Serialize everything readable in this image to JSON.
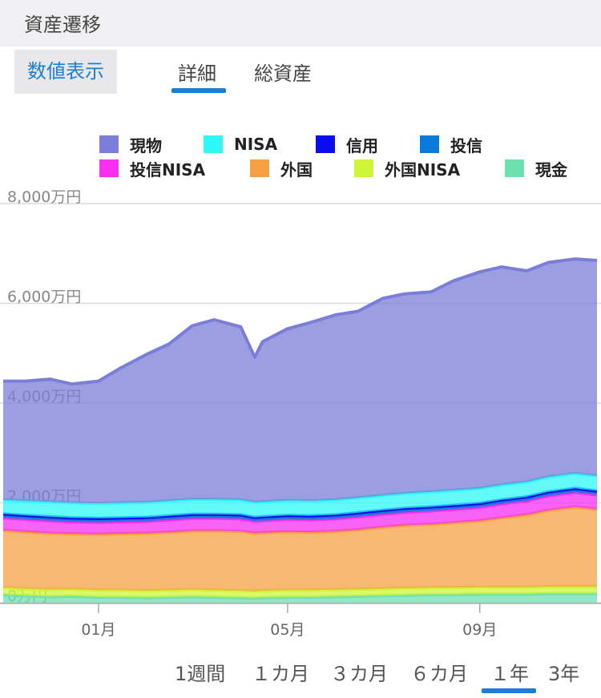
{
  "header": {
    "title": "資産遷移"
  },
  "tabs": {
    "value_toggle": "数値表示",
    "detail": "詳細",
    "total": "総資産",
    "active": "detail"
  },
  "range_buttons": [
    "1週間",
    "１カ月",
    "３カ月",
    "６カ月",
    "１年",
    "3年"
  ],
  "range_active": "１年",
  "colors": {
    "accent": "#1a7fd4",
    "genbutsu": "#7b7ed8",
    "nisa": "#2ef7f7",
    "shinyo": "#0b0bf0",
    "toshin": "#0a7bd8",
    "toshin_nisa": "#f62ff2",
    "gaikoku": "#f5a042",
    "gaikoku_nisa": "#cff53a",
    "genkin": "#6ee0b0"
  },
  "chart_data": {
    "type": "area",
    "stacked": true,
    "title": "",
    "xlabel": "",
    "ylabel": "",
    "unit": "万円",
    "ylim": [
      0,
      8000
    ],
    "yticks": [
      0,
      2000,
      4000,
      6000,
      8000
    ],
    "ytick_labels": [
      "0万円",
      "2,000万円",
      "4,000万円",
      "6,000万円",
      "8,000万円"
    ],
    "xlim": [
      "2023-11-01",
      "2024-11-15"
    ],
    "xticks": [
      "2024-01-01",
      "2024-05-01",
      "2024-09-01"
    ],
    "xtick_labels": [
      "01月",
      "05月",
      "09月"
    ],
    "grid": true,
    "legend_position": "top",
    "legend": [
      "現物",
      "NISA",
      "信用",
      "投信",
      "投信NISA",
      "外国",
      "外国NISA",
      "現金"
    ],
    "x": [
      "2023-11-01",
      "2023-11-15",
      "2023-12-01",
      "2023-12-15",
      "2024-01-01",
      "2024-01-15",
      "2024-02-01",
      "2024-02-15",
      "2024-03-01",
      "2024-03-15",
      "2024-04-01",
      "2024-04-10",
      "2024-04-15",
      "2024-05-01",
      "2024-05-15",
      "2024-06-01",
      "2024-06-15",
      "2024-07-01",
      "2024-07-15",
      "2024-08-01",
      "2024-08-15",
      "2024-09-01",
      "2024-09-15",
      "2024-10-01",
      "2024-10-15",
      "2024-11-01",
      "2024-11-15"
    ],
    "series": [
      {
        "name": "現金",
        "values": [
          160,
          140,
          120,
          130,
          110,
          110,
          100,
          110,
          120,
          110,
          100,
          90,
          100,
          110,
          110,
          120,
          130,
          140,
          150,
          160,
          160,
          170,
          170,
          170,
          180,
          180,
          180
        ]
      },
      {
        "name": "外国NISA",
        "values": [
          140,
          140,
          140,
          140,
          140,
          140,
          140,
          140,
          140,
          140,
          140,
          140,
          140,
          140,
          140,
          140,
          140,
          140,
          140,
          140,
          140,
          140,
          140,
          140,
          140,
          140,
          140
        ]
      },
      {
        "name": "外国",
        "values": [
          1150,
          1140,
          1130,
          1110,
          1120,
          1130,
          1150,
          1160,
          1180,
          1190,
          1190,
          1160,
          1160,
          1170,
          1160,
          1170,
          1190,
          1230,
          1260,
          1270,
          1300,
          1330,
          1390,
          1450,
          1530,
          1600,
          1550
        ]
      },
      {
        "name": "投信NISA",
        "values": [
          250,
          250,
          250,
          240,
          240,
          240,
          240,
          250,
          250,
          250,
          250,
          240,
          240,
          250,
          250,
          250,
          260,
          260,
          260,
          270,
          270,
          270,
          280,
          280,
          290,
          290,
          290
        ]
      },
      {
        "name": "投信",
        "values": [
          60,
          60,
          60,
          60,
          60,
          60,
          60,
          60,
          60,
          60,
          60,
          60,
          60,
          60,
          60,
          60,
          60,
          60,
          60,
          60,
          60,
          60,
          60,
          60,
          60,
          60,
          60
        ]
      },
      {
        "name": "信用",
        "values": [
          20,
          20,
          20,
          20,
          20,
          20,
          20,
          20,
          20,
          20,
          20,
          20,
          20,
          20,
          20,
          20,
          20,
          20,
          20,
          20,
          20,
          20,
          20,
          20,
          20,
          20,
          20
        ]
      },
      {
        "name": "NISA",
        "values": [
          280,
          290,
          300,
          300,
          300,
          300,
          300,
          300,
          300,
          300,
          300,
          300,
          300,
          300,
          300,
          300,
          300,
          300,
          300,
          300,
          300,
          300,
          300,
          300,
          300,
          300,
          300
        ]
      },
      {
        "name": "現物",
        "values": [
          2380,
          2400,
          2460,
          2380,
          2450,
          2700,
          2970,
          3140,
          3480,
          3600,
          3470,
          2910,
          3210,
          3440,
          3570,
          3710,
          3740,
          3950,
          4000,
          4010,
          4200,
          4340,
          4370,
          4230,
          4300,
          4300,
          4320
        ]
      }
    ]
  }
}
